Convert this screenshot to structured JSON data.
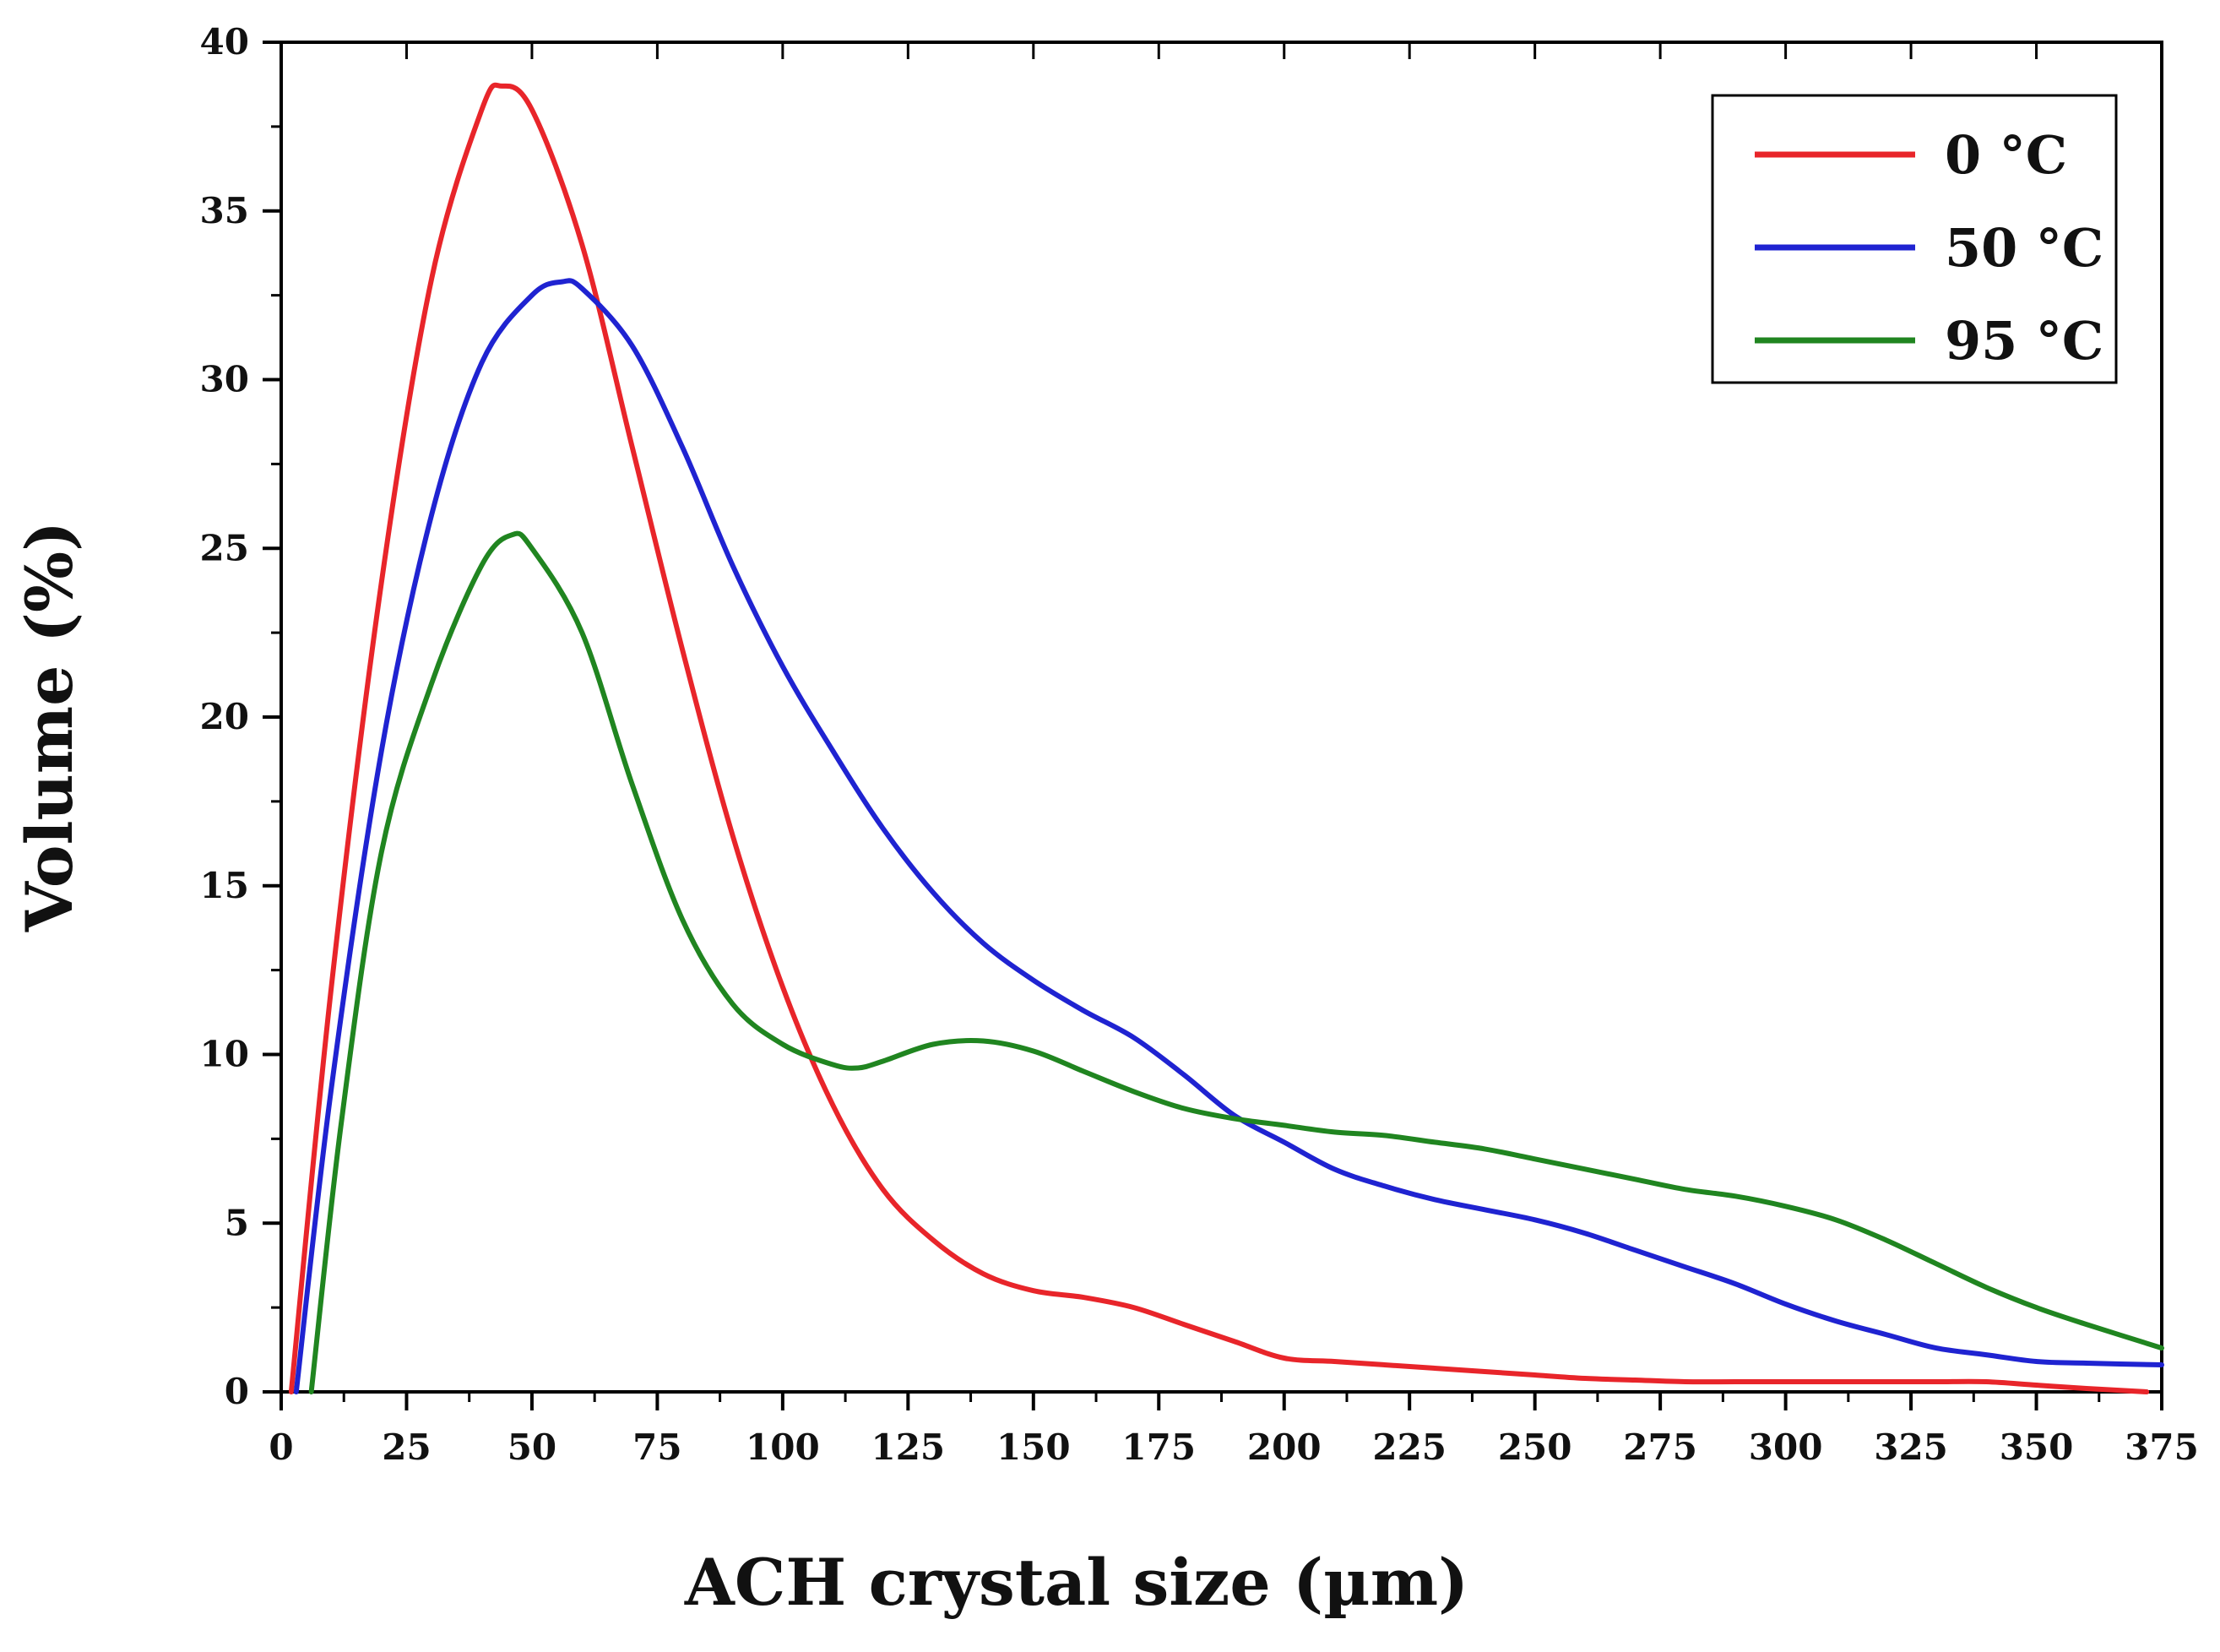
{
  "chart_data": {
    "type": "line",
    "title": "",
    "xlabel": "ACH crystal size (µm)",
    "ylabel": "Volume (%)",
    "xlim": [
      0,
      375
    ],
    "ylim": [
      0,
      40
    ],
    "xticks": [
      0,
      25,
      50,
      75,
      100,
      125,
      150,
      175,
      200,
      225,
      250,
      275,
      300,
      325,
      350,
      375
    ],
    "yticks": [
      0,
      5,
      10,
      15,
      20,
      25,
      30,
      35,
      40
    ],
    "x_tick_labels": [
      "0",
      "25",
      "50",
      "75",
      "100",
      "125",
      "150",
      "175",
      "200",
      "225",
      "250",
      "275",
      "300",
      "325",
      "350",
      "375"
    ],
    "y_tick_labels": [
      "0",
      "5",
      "10",
      "15",
      "20",
      "25",
      "30",
      "35",
      "40"
    ],
    "grid": false,
    "legend_position": "top-right",
    "series": [
      {
        "name": "0 °C",
        "color": "#e8252a",
        "x": [
          2,
          10,
          20,
          30,
          40,
          44,
          50,
          60,
          70,
          80,
          90,
          100,
          110,
          120,
          130,
          140,
          150,
          160,
          170,
          180,
          190,
          200,
          210,
          220,
          230,
          240,
          250,
          260,
          270,
          280,
          290,
          300,
          310,
          320,
          330,
          340,
          350,
          360,
          372
        ],
        "y": [
          0,
          12,
          24,
          33,
          38,
          38.7,
          38,
          34,
          28,
          22,
          16.5,
          12,
          8.5,
          6,
          4.5,
          3.5,
          3,
          2.8,
          2.5,
          2,
          1.5,
          1,
          0.9,
          0.8,
          0.7,
          0.6,
          0.5,
          0.4,
          0.35,
          0.3,
          0.3,
          0.3,
          0.3,
          0.3,
          0.3,
          0.3,
          0.2,
          0.1,
          0
        ]
      },
      {
        "name": "50 °C",
        "color": "#1f23d1",
        "x": [
          3,
          10,
          20,
          30,
          40,
          50,
          56,
          60,
          70,
          80,
          90,
          100,
          110,
          120,
          130,
          140,
          150,
          160,
          170,
          180,
          190,
          200,
          210,
          220,
          230,
          240,
          250,
          260,
          270,
          280,
          290,
          300,
          310,
          320,
          330,
          340,
          350,
          360,
          375
        ],
        "y": [
          0,
          9,
          19,
          26,
          30.5,
          32.5,
          32.9,
          32.7,
          31,
          28,
          24.5,
          21.5,
          19,
          16.7,
          14.8,
          13.3,
          12.2,
          11.3,
          10.5,
          9.4,
          8.2,
          7.4,
          6.6,
          6.1,
          5.7,
          5.4,
          5.1,
          4.7,
          4.2,
          3.7,
          3.2,
          2.6,
          2.1,
          1.7,
          1.3,
          1.1,
          0.9,
          0.85,
          0.8
        ]
      },
      {
        "name": "95 °C",
        "color": "#208520",
        "x": [
          6,
          12,
          20,
          30,
          40,
          46,
          50,
          60,
          70,
          80,
          90,
          100,
          110,
          115,
          120,
          130,
          140,
          150,
          160,
          170,
          180,
          190,
          200,
          210,
          220,
          230,
          240,
          250,
          260,
          270,
          280,
          290,
          300,
          310,
          320,
          330,
          340,
          350,
          360,
          375
        ],
        "y": [
          0,
          8,
          16,
          21,
          24.5,
          25.4,
          25,
          22.5,
          18,
          14,
          11.5,
          10.3,
          9.7,
          9.6,
          9.8,
          10.3,
          10.4,
          10.1,
          9.5,
          8.9,
          8.4,
          8.1,
          7.9,
          7.7,
          7.6,
          7.4,
          7.2,
          6.9,
          6.6,
          6.3,
          6.0,
          5.8,
          5.5,
          5.1,
          4.5,
          3.8,
          3.1,
          2.5,
          2.0,
          1.3
        ]
      }
    ]
  }
}
